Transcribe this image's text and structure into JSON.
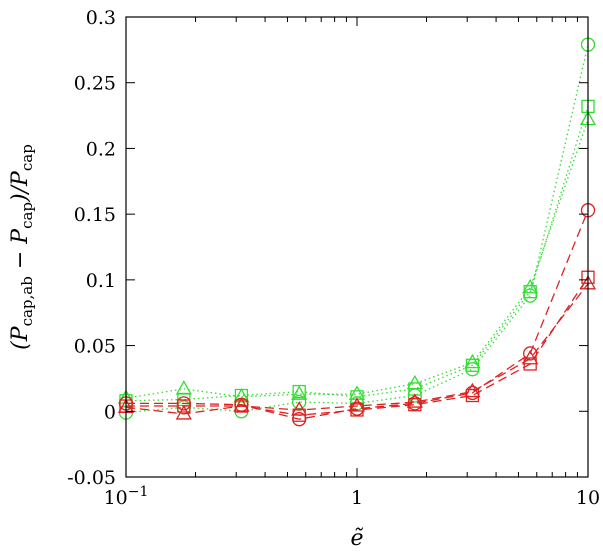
{
  "chart_data": {
    "type": "line",
    "xlabel": "ẽ",
    "ylabel": "(P_cap,ab − P_cap)/P_cap",
    "ylabel_parts": {
      "open": "(",
      "P1": "P",
      "sub1": "cap,ab",
      "minus": " − ",
      "P2": "P",
      "sub2": "cap",
      "close": ")/",
      "P3": "P",
      "sub3": "cap"
    },
    "xscale": "log",
    "xlim": [
      0.1,
      10
    ],
    "ylim": [
      -0.05,
      0.3
    ],
    "grid": false,
    "x_tick_labels": [
      {
        "value": 0.1,
        "base": "10",
        "exp": "−1"
      },
      {
        "value": 1,
        "text": "1"
      },
      {
        "value": 10,
        "text": "10"
      }
    ],
    "y_tick_labels": [
      "-0.05",
      "0",
      "0.05",
      "0.1",
      "0.15",
      "0.2",
      "0.25",
      "0.3"
    ],
    "y_tick_values": [
      -0.05,
      0,
      0.05,
      0.1,
      0.15,
      0.2,
      0.25,
      0.3
    ],
    "x": [
      0.1,
      0.178,
      0.316,
      0.562,
      1.0,
      1.78,
      3.16,
      5.62,
      10.0
    ],
    "colors": {
      "green": "#33dd33",
      "red": "#dd2222"
    },
    "series": [
      {
        "color": "#33dd33",
        "marker": "circle",
        "dash": "dotted",
        "values": [
          -0.001,
          0.003,
          0.0,
          0.007,
          0.006,
          0.012,
          0.032,
          0.088,
          0.279
        ]
      },
      {
        "color": "#33dd33",
        "marker": "square",
        "dash": "dotted",
        "values": [
          0.008,
          0.009,
          0.012,
          0.015,
          0.011,
          0.017,
          0.035,
          0.091,
          0.232
        ]
      },
      {
        "color": "#33dd33",
        "marker": "triangle",
        "dash": "dotted",
        "values": [
          0.01,
          0.017,
          0.011,
          0.013,
          0.013,
          0.021,
          0.037,
          0.094,
          0.222
        ]
      },
      {
        "color": "#dd2222",
        "marker": "circle",
        "dash": "dashed",
        "values": [
          0.006,
          0.006,
          0.005,
          -0.006,
          0.002,
          0.006,
          0.014,
          0.044,
          0.153
        ]
      },
      {
        "color": "#dd2222",
        "marker": "square",
        "dash": "dashed",
        "values": [
          0.004,
          0.004,
          0.004,
          -0.003,
          0.001,
          0.005,
          0.012,
          0.036,
          0.102
        ]
      },
      {
        "color": "#dd2222",
        "marker": "triangle",
        "dash": "dashed",
        "values": [
          0.003,
          -0.002,
          0.004,
          0.001,
          0.004,
          0.007,
          0.015,
          0.04,
          0.097
        ]
      }
    ]
  }
}
